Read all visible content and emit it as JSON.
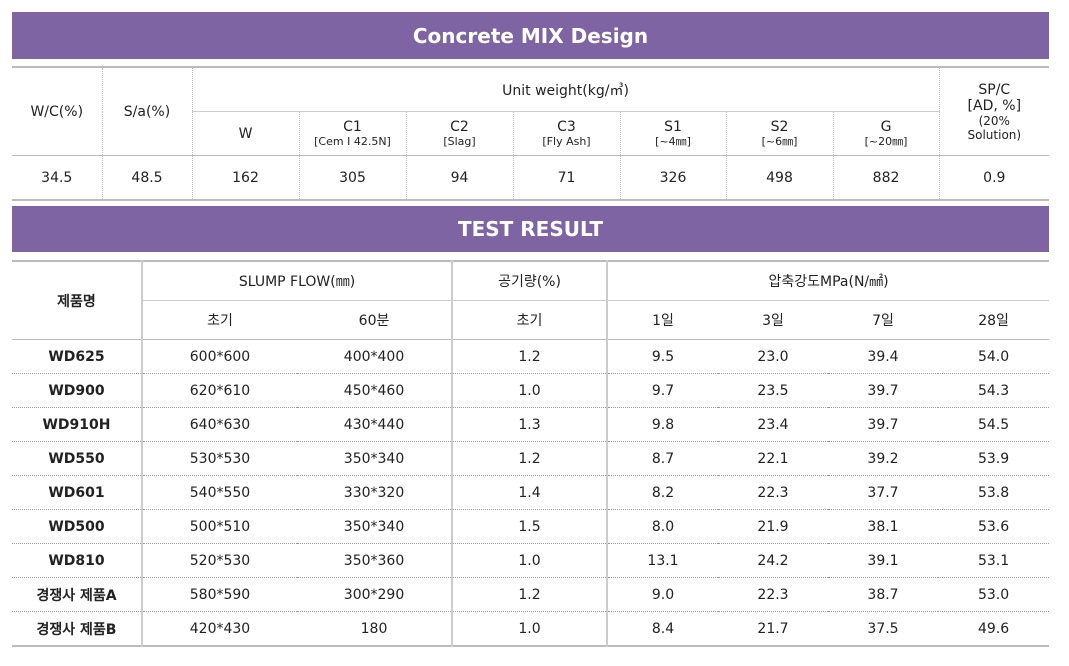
{
  "mix": {
    "title": "Concrete MIX Design",
    "headers": {
      "wc": "W/C(%)",
      "sa": "S/a(%)",
      "unit_weight": "Unit weight(kg/㎥)",
      "w": "W",
      "c1": "C1",
      "c1_sub": "[Cem I 42.5N]",
      "c2": "C2",
      "c2_sub": "[Slag]",
      "c3": "C3",
      "c3_sub": "[Fly Ash]",
      "s1": "S1",
      "s1_sub": "[~4㎜]",
      "s2": "S2",
      "s2_sub": "[~6㎜]",
      "g": "G",
      "g_sub": "[~20㎜]",
      "spc": "SP/C",
      "spc_2": "[AD, %]",
      "spc_3": "(20%",
      "spc_4": "Solution)"
    },
    "values": {
      "wc": "34.5",
      "sa": "48.5",
      "w": "162",
      "c1": "305",
      "c2": "94",
      "c3": "71",
      "s1": "326",
      "s2": "498",
      "g": "882",
      "spc": "0.9"
    }
  },
  "test": {
    "title": "TEST RESULT",
    "headers": {
      "product": "제품명",
      "slump": "SLUMP FLOW(㎜)",
      "air": "공기량(%)",
      "strength": "압축강도MPa(N/㎟)",
      "initial": "초기",
      "min60": "60분",
      "air_initial": "초기",
      "d1": "1일",
      "d3": "3일",
      "d7": "7일",
      "d28": "28일"
    },
    "rows": [
      [
        "WD625",
        "600*600",
        "400*400",
        "1.2",
        "9.5",
        "23.0",
        "39.4",
        "54.0"
      ],
      [
        "WD900",
        "620*610",
        "450*460",
        "1.0",
        "9.7",
        "23.5",
        "39.7",
        "54.3"
      ],
      [
        "WD910H",
        "640*630",
        "430*440",
        "1.3",
        "9.8",
        "23.4",
        "39.7",
        "54.5"
      ],
      [
        "WD550",
        "530*530",
        "350*340",
        "1.2",
        "8.7",
        "22.1",
        "39.2",
        "53.9"
      ],
      [
        "WD601",
        "540*550",
        "330*320",
        "1.4",
        "8.2",
        "22.3",
        "37.7",
        "53.8"
      ],
      [
        "WD500",
        "500*510",
        "350*340",
        "1.5",
        "8.0",
        "21.9",
        "38.1",
        "53.6"
      ],
      [
        "WD810",
        "520*530",
        "350*360",
        "1.0",
        "13.1",
        "24.2",
        "39.1",
        "53.1"
      ],
      [
        "경쟁사 제품A",
        "580*590",
        "300*290",
        "1.2",
        "9.0",
        "22.3",
        "38.7",
        "53.0"
      ],
      [
        "경쟁사 제품B",
        "420*430",
        "180",
        "1.0",
        "8.4",
        "21.7",
        "37.5",
        "49.6"
      ]
    ]
  }
}
